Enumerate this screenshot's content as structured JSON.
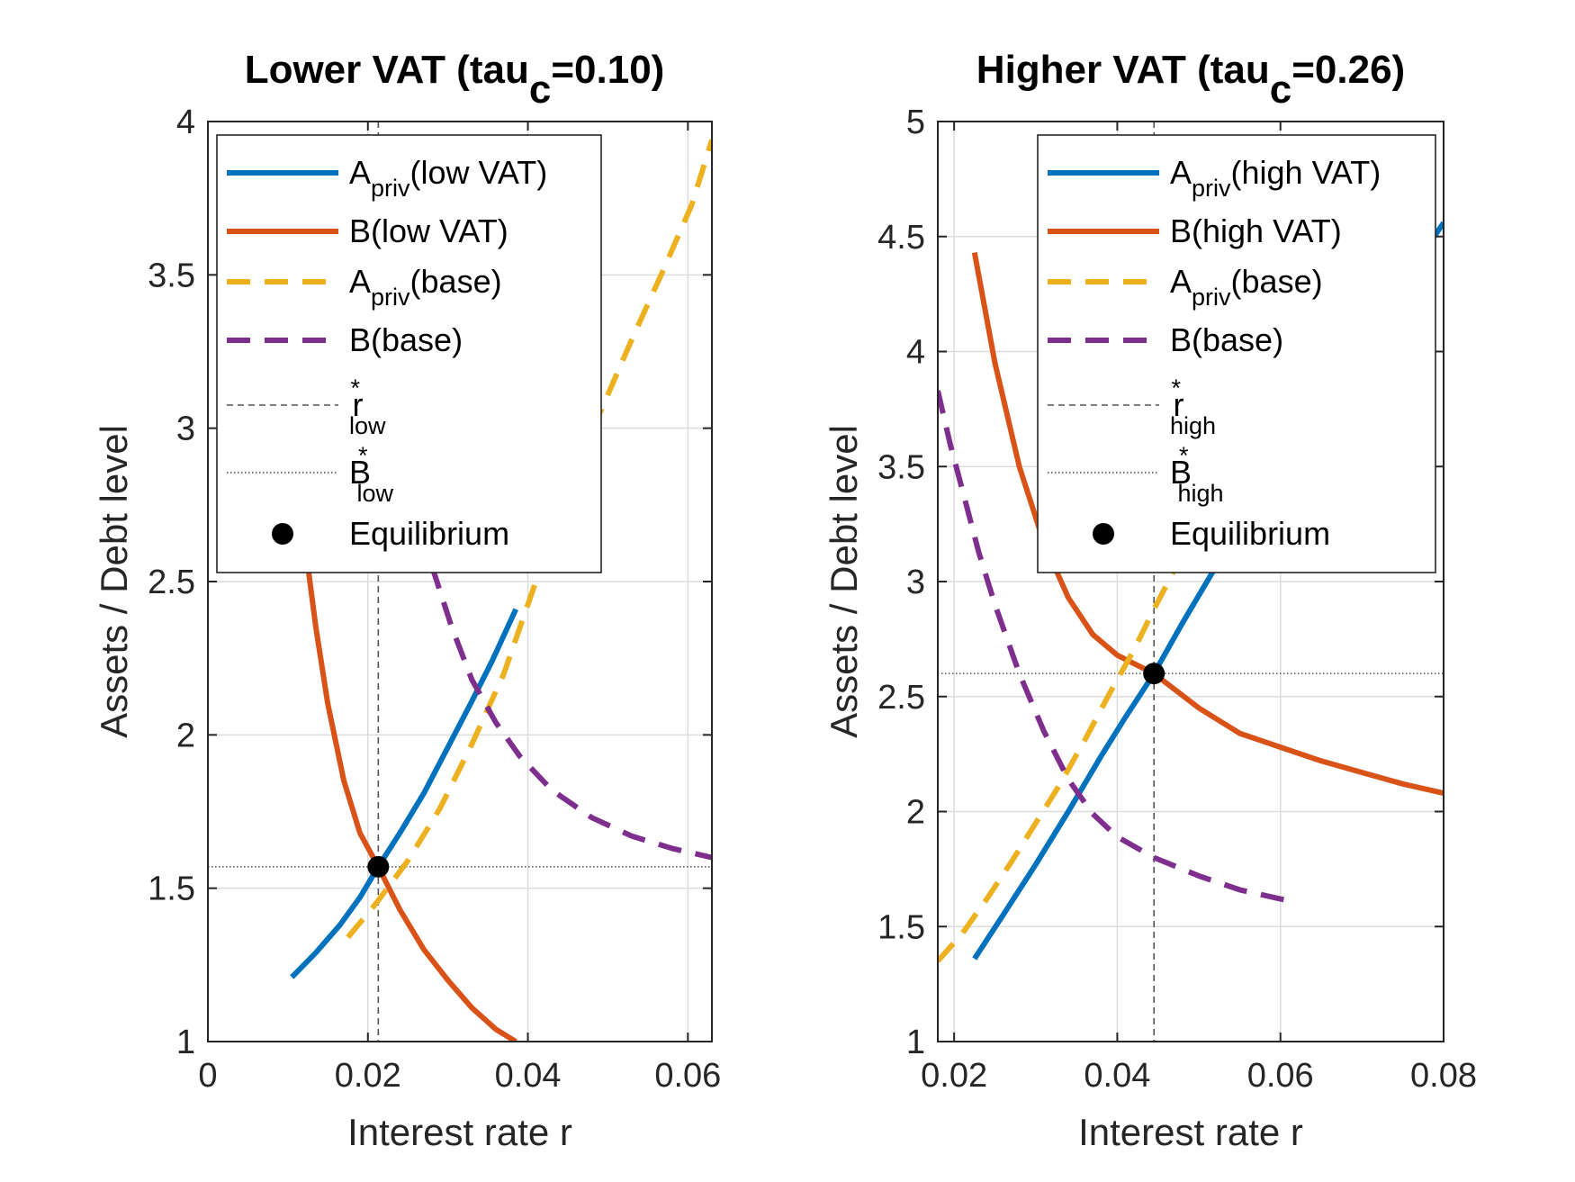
{
  "chart_data": [
    {
      "type": "line",
      "title_main": "Lower VAT (tau",
      "title_sub": "c",
      "title_tail": "=0.10)",
      "xlabel": "Interest rate r",
      "ylabel": "Assets / Debt level",
      "xlim": [
        0,
        0.063
      ],
      "ylim": [
        1,
        4
      ],
      "xticks": [
        0,
        0.02,
        0.04,
        0.06
      ],
      "xtick_labels": [
        "0",
        "0.02",
        "0.04",
        "0.06"
      ],
      "yticks": [
        1,
        1.5,
        2,
        2.5,
        3,
        3.5,
        4
      ],
      "ytick_labels": [
        "1",
        "1.5",
        "2",
        "2.5",
        "3",
        "3.5",
        "4"
      ],
      "grid": true,
      "legend_position": "top-right",
      "series": [
        {
          "name_main": "A",
          "name_sub": "priv",
          "name_tail": "(low VAT)",
          "color": "#0072BD",
          "style": "solid",
          "x": [
            0.0105,
            0.0135,
            0.0165,
            0.019,
            0.0213,
            0.024,
            0.027,
            0.03,
            0.033,
            0.0355,
            0.0385
          ],
          "y": [
            1.21,
            1.29,
            1.38,
            1.47,
            1.57,
            1.68,
            1.81,
            1.96,
            2.11,
            2.24,
            2.41
          ]
        },
        {
          "name_main": "B",
          "name_sub": "",
          "name_tail": "(low VAT)",
          "color": "#D95319",
          "style": "solid",
          "x": [
            0.0125,
            0.0135,
            0.015,
            0.017,
            0.019,
            0.0213,
            0.024,
            0.027,
            0.03,
            0.033,
            0.036,
            0.0385
          ],
          "y": [
            2.55,
            2.35,
            2.1,
            1.85,
            1.68,
            1.57,
            1.43,
            1.3,
            1.2,
            1.11,
            1.04,
            1.0
          ]
        },
        {
          "name_main": "A",
          "name_sub": "priv",
          "name_tail": "(base)",
          "color": "#EDB120",
          "style": "dashed",
          "x": [
            0.0175,
            0.021,
            0.025,
            0.029,
            0.033,
            0.037,
            0.041,
            0.045,
            0.049,
            0.053,
            0.057,
            0.0605,
            0.063
          ],
          "y": [
            1.34,
            1.45,
            1.59,
            1.76,
            1.97,
            2.2,
            2.5,
            2.78,
            3.05,
            3.29,
            3.52,
            3.73,
            3.94
          ]
        },
        {
          "name_main": "B",
          "name_sub": "",
          "name_tail": "(base)",
          "color": "#7E2F8E",
          "style": "dashed",
          "x": [
            0.028,
            0.0305,
            0.033,
            0.036,
            0.039,
            0.043,
            0.048,
            0.053,
            0.058,
            0.063
          ],
          "y": [
            2.55,
            2.35,
            2.18,
            2.04,
            1.93,
            1.82,
            1.73,
            1.67,
            1.63,
            1.6
          ]
        }
      ],
      "r_star": 0.0213,
      "B_star": 1.57,
      "rstar_label_main": "r",
      "rstar_label_sub": "low",
      "Bstar_label_main": "B",
      "Bstar_label_sub": "low",
      "star": "*",
      "equilibrium_label": "Equilibrium"
    },
    {
      "type": "line",
      "title_main": "Higher VAT (tau",
      "title_sub": "c",
      "title_tail": "=0.26)",
      "xlabel": "Interest rate r",
      "ylabel": "Assets / Debt level",
      "xlim": [
        0.018,
        0.08
      ],
      "ylim": [
        1,
        5
      ],
      "xticks": [
        0.02,
        0.04,
        0.06,
        0.08
      ],
      "xtick_labels": [
        "0.02",
        "0.04",
        "0.06",
        "0.08"
      ],
      "yticks": [
        1,
        1.5,
        2,
        2.5,
        3,
        3.5,
        4,
        4.5,
        5
      ],
      "ytick_labels": [
        "1",
        "1.5",
        "2",
        "2.5",
        "3",
        "3.5",
        "4",
        "4.5",
        "5"
      ],
      "grid": true,
      "legend_position": "top-right",
      "series": [
        {
          "name_main": "A",
          "name_sub": "priv",
          "name_tail": "(high VAT)",
          "color": "#0072BD",
          "style": "solid",
          "x": [
            0.0225,
            0.026,
            0.03,
            0.034,
            0.038,
            0.041,
            0.0445,
            0.048,
            0.052,
            0.056,
            0.06,
            0.065,
            0.07,
            0.075,
            0.08
          ],
          "y": [
            1.36,
            1.55,
            1.77,
            2.0,
            2.24,
            2.41,
            2.6,
            2.82,
            3.06,
            3.29,
            3.52,
            3.8,
            4.06,
            4.3,
            4.56
          ]
        },
        {
          "name_main": "B",
          "name_sub": "",
          "name_tail": "(high VAT)",
          "color": "#D95319",
          "style": "solid",
          "x": [
            0.0225,
            0.025,
            0.028,
            0.031,
            0.034,
            0.037,
            0.04,
            0.0445,
            0.05,
            0.055,
            0.06,
            0.065,
            0.07,
            0.075,
            0.08
          ],
          "y": [
            4.43,
            3.95,
            3.5,
            3.17,
            2.93,
            2.77,
            2.68,
            2.6,
            2.45,
            2.34,
            2.28,
            2.22,
            2.17,
            2.12,
            2.08
          ]
        },
        {
          "name_main": "A",
          "name_sub": "priv",
          "name_tail": "(base)",
          "color": "#EDB120",
          "style": "dashed",
          "x": [
            0.018,
            0.021,
            0.024,
            0.027,
            0.03,
            0.033,
            0.036,
            0.039,
            0.042,
            0.0445,
            0.047
          ],
          "y": [
            1.35,
            1.47,
            1.62,
            1.78,
            1.95,
            2.12,
            2.31,
            2.51,
            2.7,
            2.88,
            3.05
          ]
        },
        {
          "name_main": "B",
          "name_sub": "",
          "name_tail": "(base)",
          "color": "#7E2F8E",
          "style": "dashed",
          "x": [
            0.018,
            0.0195,
            0.021,
            0.023,
            0.025,
            0.028,
            0.031,
            0.034,
            0.037,
            0.04,
            0.0445,
            0.05,
            0.055,
            0.06,
            0.0615
          ],
          "y": [
            3.83,
            3.6,
            3.4,
            3.13,
            2.9,
            2.6,
            2.35,
            2.14,
            1.99,
            1.89,
            1.8,
            1.72,
            1.66,
            1.62,
            1.61
          ]
        }
      ],
      "r_star": 0.0445,
      "B_star": 2.6,
      "rstar_label_main": "r",
      "rstar_label_sub": "high",
      "Bstar_label_main": "B",
      "Bstar_label_sub": "high",
      "star": "*",
      "equilibrium_label": "Equilibrium"
    }
  ]
}
